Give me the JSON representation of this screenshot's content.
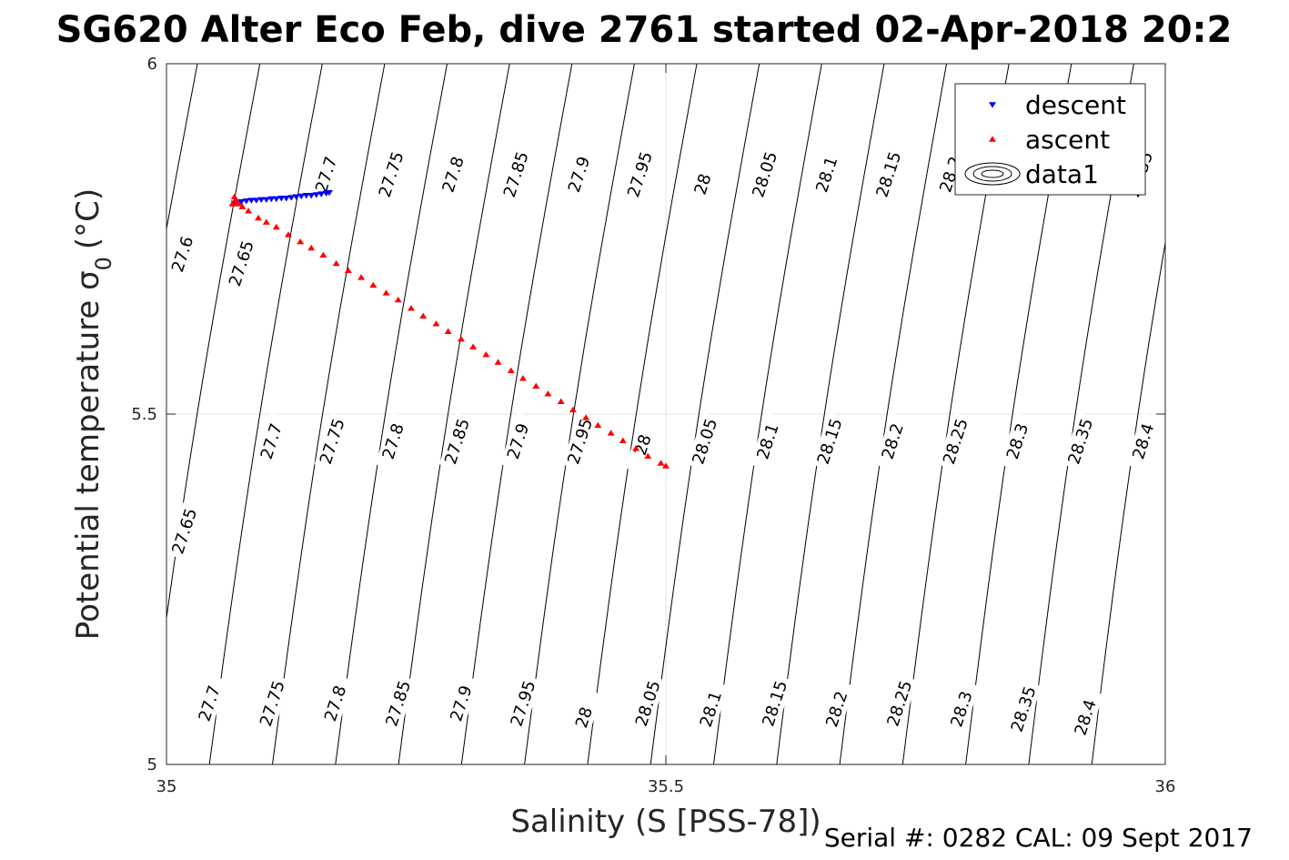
{
  "chart_data": {
    "type": "scatter",
    "title": "SG620 Alter Eco Feb, dive 2761 started 02-Apr-2018 20:2",
    "xlabel": "Salinity (S [PSS-78])",
    "ylabel": "Potential temperature σ_0 (°C)",
    "xlim": [
      35,
      36
    ],
    "ylim": [
      5,
      6
    ],
    "x_ticks": [
      "35",
      "35.5",
      "36"
    ],
    "y_ticks": [
      "5",
      "5.5",
      "6"
    ],
    "grid": true,
    "legend_placement": "top-right",
    "footer": "Serial #: 0282  CAL: 09 Sept 2017",
    "series": [
      {
        "name": "descent",
        "marker": "triangle-down",
        "color": "#0000ff",
        "x": [
          35.068,
          35.075,
          35.08,
          35.085,
          35.09,
          35.095,
          35.1,
          35.105,
          35.11,
          35.115,
          35.12,
          35.125,
          35.13,
          35.135,
          35.14,
          35.145,
          35.15,
          35.155,
          35.16,
          35.163
        ],
        "y": [
          5.801,
          5.803,
          5.804,
          5.805,
          5.805,
          5.806,
          5.806,
          5.807,
          5.807,
          5.808,
          5.808,
          5.809,
          5.81,
          5.811,
          5.812,
          5.812,
          5.813,
          5.814,
          5.815,
          5.816
        ]
      },
      {
        "name": "ascent",
        "marker": "triangle-up",
        "color": "#ff0000",
        "x": [
          35.066,
          35.07,
          35.068,
          35.072,
          35.076,
          35.082,
          35.092,
          35.1,
          35.11,
          35.122,
          35.134,
          35.145,
          35.157,
          35.17,
          35.182,
          35.195,
          35.207,
          35.22,
          35.232,
          35.245,
          35.257,
          35.27,
          35.282,
          35.295,
          35.307,
          35.32,
          35.332,
          35.345,
          35.357,
          35.37,
          35.382,
          35.395,
          35.407,
          35.42,
          35.432,
          35.445,
          35.457,
          35.47,
          35.482,
          35.495,
          35.5
        ],
        "y": [
          5.8,
          5.805,
          5.81,
          5.8,
          5.796,
          5.79,
          5.78,
          5.774,
          5.767,
          5.756,
          5.746,
          5.737,
          5.727,
          5.715,
          5.705,
          5.695,
          5.684,
          5.673,
          5.663,
          5.651,
          5.64,
          5.629,
          5.618,
          5.607,
          5.596,
          5.585,
          5.574,
          5.562,
          5.551,
          5.54,
          5.529,
          5.518,
          5.506,
          5.495,
          5.484,
          5.473,
          5.462,
          5.451,
          5.44,
          5.43,
          5.426
        ]
      },
      {
        "name": "data1",
        "marker": "contour",
        "color": "#000000",
        "contour_levels": [
          "27.6",
          "27.65",
          "27.7",
          "27.75",
          "27.8",
          "27.85",
          "27.9",
          "27.95",
          "28",
          "28.05",
          "28.1",
          "28.15",
          "28.2",
          "28.25",
          "28.3",
          "28.35",
          "28.4"
        ],
        "contour_labels": [
          {
            "text": "27.6",
            "x": 35.016,
            "y": 5.728
          },
          {
            "text": "27.65",
            "x": 35.075,
            "y": 5.715
          },
          {
            "text": "27.7",
            "x": 35.16,
            "y": 5.842
          },
          {
            "text": "27.75",
            "x": 35.225,
            "y": 5.842
          },
          {
            "text": "27.8",
            "x": 35.287,
            "y": 5.842
          },
          {
            "text": "27.85",
            "x": 35.35,
            "y": 5.842
          },
          {
            "text": "27.9",
            "x": 35.413,
            "y": 5.842
          },
          {
            "text": "27.95",
            "x": 35.474,
            "y": 5.842
          },
          {
            "text": "28",
            "x": 35.537,
            "y": 5.828
          },
          {
            "text": "28.05",
            "x": 35.599,
            "y": 5.842
          },
          {
            "text": "28.1",
            "x": 35.661,
            "y": 5.842
          },
          {
            "text": "28.15",
            "x": 35.723,
            "y": 5.842
          },
          {
            "text": "28.2",
            "x": 35.785,
            "y": 5.842
          },
          {
            "text": "28.35",
            "x": 35.975,
            "y": 5.842
          },
          {
            "text": "27.65",
            "x": 35.018,
            "y": 5.333
          },
          {
            "text": "27.7",
            "x": 35.105,
            "y": 5.461
          },
          {
            "text": "27.75",
            "x": 35.166,
            "y": 5.461
          },
          {
            "text": "27.8",
            "x": 35.227,
            "y": 5.461
          },
          {
            "text": "27.85",
            "x": 35.291,
            "y": 5.461
          },
          {
            "text": "27.9",
            "x": 35.352,
            "y": 5.461
          },
          {
            "text": "27.95",
            "x": 35.414,
            "y": 5.461
          },
          {
            "text": "28",
            "x": 35.477,
            "y": 5.456
          },
          {
            "text": "28.05",
            "x": 35.539,
            "y": 5.461
          },
          {
            "text": "28.1",
            "x": 35.602,
            "y": 5.461
          },
          {
            "text": "28.15",
            "x": 35.664,
            "y": 5.461
          },
          {
            "text": "28.2",
            "x": 35.727,
            "y": 5.461
          },
          {
            "text": "28.25",
            "x": 35.79,
            "y": 5.461
          },
          {
            "text": "28.3",
            "x": 35.852,
            "y": 5.461
          },
          {
            "text": "28.35",
            "x": 35.915,
            "y": 5.461
          },
          {
            "text": "28.4",
            "x": 35.978,
            "y": 5.461
          },
          {
            "text": "27.7",
            "x": 35.043,
            "y": 5.087
          },
          {
            "text": "27.75",
            "x": 35.106,
            "y": 5.087
          },
          {
            "text": "27.8",
            "x": 35.169,
            "y": 5.087
          },
          {
            "text": "27.85",
            "x": 35.232,
            "y": 5.087
          },
          {
            "text": "27.9",
            "x": 35.295,
            "y": 5.087
          },
          {
            "text": "27.95",
            "x": 35.357,
            "y": 5.087
          },
          {
            "text": "28",
            "x": 35.418,
            "y": 5.067
          },
          {
            "text": "28.05",
            "x": 35.482,
            "y": 5.087
          },
          {
            "text": "28.1",
            "x": 35.545,
            "y": 5.079
          },
          {
            "text": "28.15",
            "x": 35.609,
            "y": 5.087
          },
          {
            "text": "28.2",
            "x": 35.671,
            "y": 5.079
          },
          {
            "text": "28.25",
            "x": 35.734,
            "y": 5.087
          },
          {
            "text": "28.3",
            "x": 35.796,
            "y": 5.079
          },
          {
            "text": "28.35",
            "x": 35.858,
            "y": 5.079
          },
          {
            "text": "28.4",
            "x": 35.92,
            "y": 5.067
          }
        ]
      }
    ]
  }
}
